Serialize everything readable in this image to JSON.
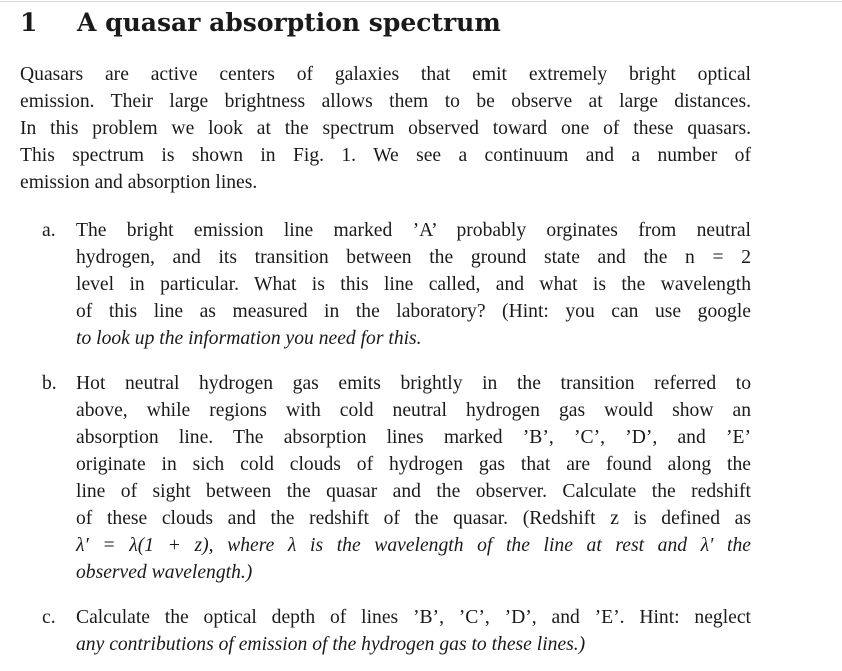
{
  "section": {
    "number": "1",
    "title": "A quasar absorption spectrum"
  },
  "intro": {
    "lines": [
      "Quasars are active centers of galaxies that emit extremely bright optical",
      "emission. Their large brightness allows them to be observe at large distances.",
      "In this problem we look at the spectrum observed toward one of these quasars.",
      "This spectrum is shown in Fig. 1. We see a continuum and a number of",
      "emission and absorption lines."
    ]
  },
  "items": [
    {
      "marker": "a.",
      "lines": [
        "The bright emission line marked ’A’ probably orginates from neutral",
        "hydrogen, and its transition between the ground state and the n = 2",
        "level in particular. What is this line called, and what is the wavelength",
        "of this line as measured in the laboratory? (Hint: you can use google",
        "to look up the information you need for this."
      ]
    },
    {
      "marker": "b.",
      "lines": [
        "Hot neutral hydrogen gas emits brightly in the transition referred to",
        "above, while regions with cold neutral hydrogen gas would show an",
        "absorption line. The absorption lines marked ’B’, ’C’, ’D’, and ’E’",
        "originate in sich cold clouds of hydrogen gas that are found along the",
        "line of sight between the quasar and the observer. Calculate the redshift",
        "of these clouds and the redshift of the quasar. (Redshift z is defined as",
        "λ′ = λ(1 + z), where λ is the wavelength of the line at rest and λ′ the",
        "observed wavelength.)"
      ]
    },
    {
      "marker": "c.",
      "lines": [
        "Calculate the optical depth of lines ’B’, ’C’, ’D’, and ’E’. Hint: neglect",
        "any contributions of emission of the hydrogen gas to these lines.)"
      ]
    }
  ]
}
